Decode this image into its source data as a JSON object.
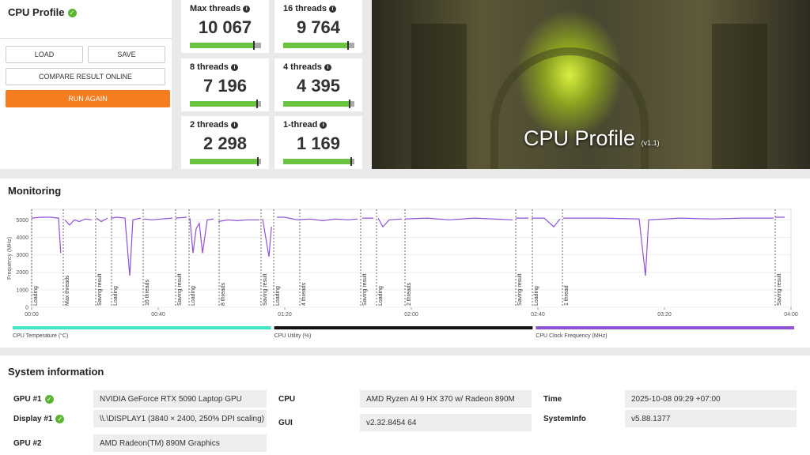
{
  "profile": {
    "title": "CPU Profile",
    "buttons": {
      "load": "LOAD",
      "save": "SAVE",
      "compare": "COMPARE RESULT ONLINE",
      "run": "RUN AGAIN"
    }
  },
  "scores": [
    {
      "label": "Max threads",
      "score": "10 067"
    },
    {
      "label": "16 threads",
      "score": "9 764"
    },
    {
      "label": "8 threads",
      "score": "7 196"
    },
    {
      "label": "4 threads",
      "score": "4 395"
    },
    {
      "label": "2 threads",
      "score": "2 298"
    },
    {
      "label": "1-thread",
      "score": "1 169"
    }
  ],
  "hero": {
    "title": "CPU Profile",
    "version": "(v1.1)"
  },
  "chart_data": {
    "type": "line",
    "title": "Monitoring",
    "y_label": "Frequency (MHz)",
    "x": [
      0,
      3,
      6,
      8.5,
      9.2,
      9.9,
      10.5,
      12,
      13.5,
      15,
      17,
      19,
      19.8,
      20.5,
      22,
      24,
      24.5,
      25,
      27,
      29.5,
      31,
      32,
      34.5,
      35,
      35.5,
      38,
      41,
      44.5,
      45,
      45.5,
      49,
      49.5,
      50,
      51,
      52,
      53,
      54,
      55.5,
      57.5,
      58.3,
      59,
      62,
      65,
      68,
      72,
      72.5,
      73,
      75,
      75.8,
      76.6,
      77.5,
      80,
      84,
      88,
      92,
      96,
      100,
      103,
      103.8,
      104.5,
      108,
      108.8,
      109.5,
      111,
      113,
      117,
      117.5,
      118,
      125,
      132,
      140,
      146,
      152,
      152.5,
      153,
      157,
      157.5,
      158,
      162,
      165,
      167,
      167.5,
      168,
      180,
      192,
      194,
      195,
      205,
      215,
      225,
      234.5,
      234.8,
      235,
      238
    ],
    "series": [
      {
        "color": "#8e52d6",
        "values": [
          5100,
          5150,
          5150,
          5100,
          3100,
          null,
          5000,
          4700,
          5000,
          4900,
          5050,
          5000,
          null,
          5100,
          4900,
          5100,
          null,
          5100,
          5150,
          5100,
          1800,
          5000,
          5100,
          null,
          5050,
          5000,
          5050,
          5100,
          null,
          5100,
          5150,
          null,
          5100,
          3100,
          4500,
          4800,
          3100,
          5000,
          5050,
          null,
          4900,
          5000,
          4950,
          5000,
          5000,
          null,
          5050,
          2900,
          4600,
          null,
          5150,
          5150,
          5000,
          5050,
          4950,
          5050,
          5000,
          5050,
          null,
          5100,
          5100,
          null,
          5100,
          4600,
          5000,
          5050,
          null,
          5050,
          5100,
          5000,
          5100,
          5050,
          5000,
          null,
          5100,
          5100,
          null,
          5100,
          5100,
          4600,
          5050,
          null,
          5100,
          5100,
          5050,
          1800,
          5000,
          5100,
          5050,
          5100,
          5100,
          null,
          5150,
          5150
        ]
      }
    ],
    "xlim": [
      0,
      240
    ],
    "xticks": [
      {
        "value": 0,
        "label": "00:00"
      },
      {
        "value": 40,
        "label": "00:40"
      },
      {
        "value": 80,
        "label": "01:20"
      },
      {
        "value": 120,
        "label": "02:00"
      },
      {
        "value": 160,
        "label": "02:40"
      },
      {
        "value": 200,
        "label": "03:20"
      },
      {
        "value": 240,
        "label": "04:00"
      }
    ],
    "ylim": [
      0,
      5600
    ],
    "yticks": [
      0,
      1000,
      2000,
      3000,
      4000,
      5000
    ],
    "grid": true,
    "markers": [
      {
        "x": 0,
        "label": "Loading"
      },
      {
        "x": 10,
        "label": "Max threads"
      },
      {
        "x": 20.25,
        "label": "Saving result"
      },
      {
        "x": 25.25,
        "label": "Loading"
      },
      {
        "x": 35.25,
        "label": "16 threads"
      },
      {
        "x": 45.5,
        "label": "Saving result"
      },
      {
        "x": 49.75,
        "label": "Loading"
      },
      {
        "x": 59.25,
        "label": "8 threads"
      },
      {
        "x": 72.5,
        "label": "Saving result"
      },
      {
        "x": 76.5,
        "label": "Loading"
      },
      {
        "x": 84.75,
        "label": "4 threads"
      },
      {
        "x": 104,
        "label": "Saving result"
      },
      {
        "x": 109,
        "label": "Loading"
      },
      {
        "x": 118,
        "label": "2 threads"
      },
      {
        "x": 153,
        "label": "Saving result"
      },
      {
        "x": 158.25,
        "label": "Loading"
      },
      {
        "x": 167.75,
        "label": "1 thread"
      },
      {
        "x": 235,
        "label": "Saving result"
      }
    ],
    "legend": [
      {
        "name": "CPU Temperature (°C)",
        "color": "#3fe6c6"
      },
      {
        "name": "CPU Utility (%)",
        "color": "#111111"
      },
      {
        "name": "CPU Clock Frequency (MHz)",
        "color": "#8e52d6"
      }
    ]
  },
  "system_info": {
    "heading": "System information",
    "gpu1": {
      "label": "GPU #1",
      "value": "NVIDIA GeForce RTX 5090 Laptop GPU"
    },
    "display1": {
      "label": "Display #1",
      "value": "\\\\.\\DISPLAY1 (3840 × 2400, 250% DPI scaling)"
    },
    "gpu2": {
      "label": "GPU #2",
      "value": "AMD Radeon(TM) 890M Graphics"
    },
    "cpu": {
      "label": "CPU",
      "value": "AMD Ryzen AI 9 HX 370 w/ Radeon 890M"
    },
    "gui": {
      "label": "GUI",
      "value": "v2.32.8454 64"
    },
    "time": {
      "label": "Time",
      "value": "2025-10-08 09:29 +07:00"
    },
    "sysinfo": {
      "label": "SystemInfo",
      "value": "v5.88.1377"
    }
  }
}
